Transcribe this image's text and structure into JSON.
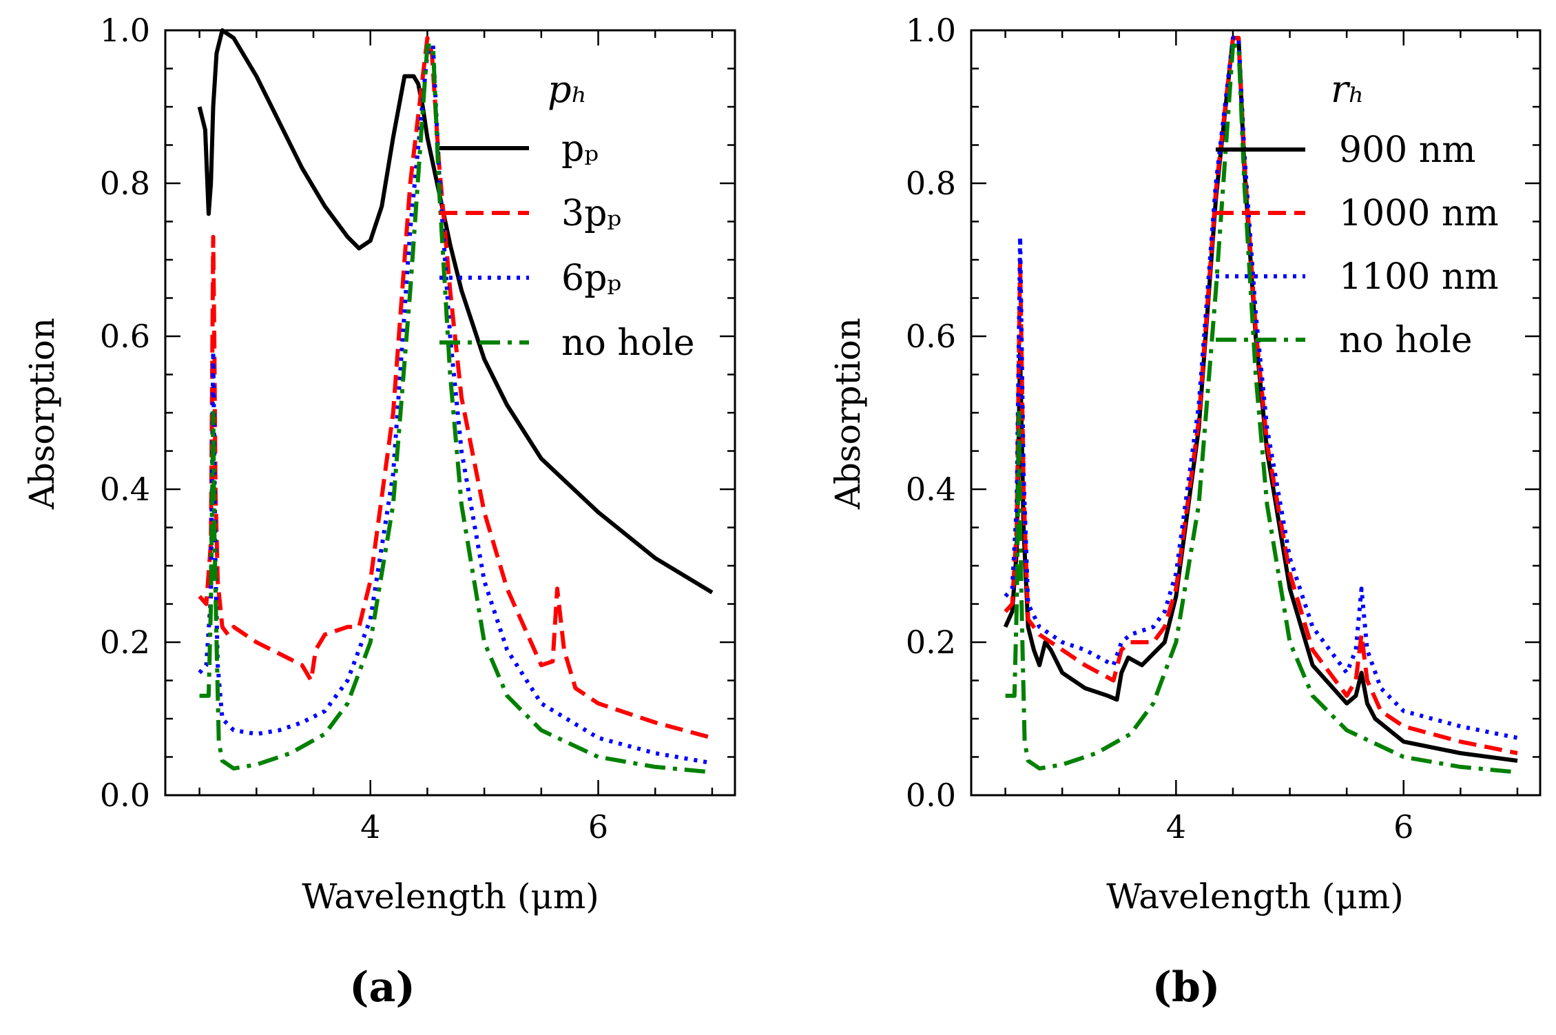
{
  "chart_data": [
    {
      "panel": "a",
      "caption": "(a)",
      "type": "line",
      "xlabel": "Wavelength (μm)",
      "ylabel": "Absorption",
      "xlim": [
        2.2,
        7.2
      ],
      "ylim": [
        0.0,
        1.0
      ],
      "xticks": [
        4,
        6
      ],
      "xtick_labels": [
        "4",
        "6"
      ],
      "yticks": [
        0.0,
        0.2,
        0.4,
        0.6,
        0.8,
        1.0
      ],
      "ytick_labels": [
        "0.0",
        "0.2",
        "0.4",
        "0.6",
        "0.8",
        "1.0"
      ],
      "legend_title": "p_h",
      "legend_title_display": "pₕ",
      "legend_placement": "top-right",
      "series": [
        {
          "name": "p_p",
          "label": "pₚ",
          "color": "#000000",
          "style": "solid",
          "x": [
            2.5,
            2.55,
            2.58,
            2.6,
            2.62,
            2.65,
            2.7,
            2.8,
            3.0,
            3.2,
            3.4,
            3.6,
            3.8,
            3.9,
            4.0,
            4.1,
            4.2,
            4.3,
            4.38,
            4.42,
            4.46,
            4.5,
            4.6,
            4.7,
            4.8,
            5.0,
            5.2,
            5.5,
            6.0,
            6.5,
            7.0
          ],
          "y": [
            0.9,
            0.87,
            0.76,
            0.8,
            0.9,
            0.97,
            1.0,
            0.99,
            0.94,
            0.88,
            0.82,
            0.77,
            0.73,
            0.715,
            0.725,
            0.77,
            0.86,
            0.94,
            0.94,
            0.93,
            0.9,
            0.86,
            0.79,
            0.72,
            0.66,
            0.57,
            0.51,
            0.44,
            0.37,
            0.31,
            0.265
          ]
        },
        {
          "name": "3p_p",
          "label": "3pₚ",
          "color": "#ff0000",
          "style": "dashed",
          "x": [
            2.5,
            2.56,
            2.6,
            2.62,
            2.63,
            2.64,
            2.66,
            2.7,
            2.75,
            2.8,
            3.0,
            3.2,
            3.4,
            3.48,
            3.52,
            3.6,
            3.8,
            3.9,
            4.0,
            4.2,
            4.35,
            4.5,
            4.54,
            4.6,
            4.7,
            4.8,
            5.0,
            5.2,
            5.5,
            5.6,
            5.64,
            5.7,
            5.8,
            6.0,
            6.5,
            7.0
          ],
          "y": [
            0.26,
            0.25,
            0.33,
            0.73,
            0.6,
            0.4,
            0.28,
            0.22,
            0.21,
            0.22,
            0.2,
            0.185,
            0.17,
            0.15,
            0.19,
            0.21,
            0.22,
            0.22,
            0.28,
            0.5,
            0.8,
            0.99,
            0.97,
            0.83,
            0.66,
            0.52,
            0.37,
            0.27,
            0.17,
            0.175,
            0.27,
            0.19,
            0.14,
            0.12,
            0.095,
            0.075
          ]
        },
        {
          "name": "6p_p",
          "label": "6pₚ",
          "color": "#0000ff",
          "style": "dotted",
          "x": [
            2.5,
            2.56,
            2.6,
            2.62,
            2.63,
            2.64,
            2.66,
            2.7,
            2.8,
            3.0,
            3.2,
            3.4,
            3.6,
            3.8,
            4.0,
            4.2,
            4.35,
            4.5,
            4.55,
            4.6,
            4.7,
            4.8,
            5.0,
            5.2,
            5.5,
            6.0,
            6.5,
            7.0
          ],
          "y": [
            0.16,
            0.17,
            0.26,
            0.58,
            0.45,
            0.3,
            0.17,
            0.1,
            0.085,
            0.08,
            0.085,
            0.095,
            0.11,
            0.15,
            0.23,
            0.42,
            0.74,
            0.97,
            0.98,
            0.82,
            0.6,
            0.45,
            0.28,
            0.19,
            0.12,
            0.075,
            0.055,
            0.042
          ]
        },
        {
          "name": "no hole",
          "label": "no hole",
          "color": "#008000",
          "style": "dashdot",
          "x": [
            2.5,
            2.58,
            2.6,
            2.62,
            2.63,
            2.65,
            2.67,
            2.7,
            2.8,
            3.0,
            3.3,
            3.6,
            3.8,
            4.0,
            4.2,
            4.35,
            4.5,
            4.55,
            4.6,
            4.7,
            4.8,
            5.0,
            5.2,
            5.5,
            6.0,
            6.5,
            7.0
          ],
          "y": [
            0.13,
            0.13,
            0.25,
            0.5,
            0.35,
            0.2,
            0.07,
            0.045,
            0.035,
            0.04,
            0.055,
            0.08,
            0.12,
            0.2,
            0.38,
            0.66,
            0.98,
            0.98,
            0.8,
            0.55,
            0.38,
            0.2,
            0.13,
            0.085,
            0.05,
            0.037,
            0.03
          ]
        }
      ]
    },
    {
      "panel": "b",
      "caption": "(b)",
      "type": "line",
      "xlabel": "Wavelength (μm)",
      "ylabel": "Absorption",
      "xlim": [
        2.2,
        7.2
      ],
      "ylim": [
        0.0,
        1.0
      ],
      "xticks": [
        4,
        6
      ],
      "xtick_labels": [
        "4",
        "6"
      ],
      "yticks": [
        0.0,
        0.2,
        0.4,
        0.6,
        0.8,
        1.0
      ],
      "ytick_labels": [
        "0.0",
        "0.2",
        "0.4",
        "0.6",
        "0.8",
        "1.0"
      ],
      "legend_title": "r_h",
      "legend_title_display": "rₕ",
      "legend_placement": "top-right",
      "series": [
        {
          "name": "900 nm",
          "label": "900 nm",
          "color": "#000000",
          "style": "solid",
          "x": [
            2.5,
            2.56,
            2.6,
            2.63,
            2.66,
            2.7,
            2.75,
            2.8,
            2.85,
            2.9,
            3.0,
            3.2,
            3.4,
            3.48,
            3.52,
            3.58,
            3.7,
            3.9,
            4.0,
            4.2,
            4.35,
            4.5,
            4.55,
            4.6,
            4.7,
            4.8,
            5.0,
            5.2,
            5.5,
            5.58,
            5.63,
            5.68,
            5.75,
            6.0,
            6.5,
            7.0
          ],
          "y": [
            0.22,
            0.24,
            0.32,
            0.58,
            0.35,
            0.22,
            0.19,
            0.17,
            0.2,
            0.19,
            0.16,
            0.14,
            0.13,
            0.125,
            0.16,
            0.18,
            0.17,
            0.2,
            0.26,
            0.48,
            0.78,
            0.99,
            0.99,
            0.82,
            0.6,
            0.45,
            0.27,
            0.17,
            0.12,
            0.13,
            0.16,
            0.12,
            0.1,
            0.07,
            0.055,
            0.045
          ]
        },
        {
          "name": "1000 nm",
          "label": "1000 nm",
          "color": "#ff0000",
          "style": "dashed",
          "x": [
            2.5,
            2.56,
            2.6,
            2.63,
            2.66,
            2.7,
            2.8,
            3.0,
            3.2,
            3.45,
            3.52,
            3.6,
            3.8,
            3.9,
            4.0,
            4.2,
            4.35,
            4.5,
            4.55,
            4.6,
            4.7,
            4.8,
            5.0,
            5.2,
            5.5,
            5.58,
            5.63,
            5.68,
            5.8,
            6.0,
            6.5,
            7.0
          ],
          "y": [
            0.24,
            0.25,
            0.35,
            0.7,
            0.4,
            0.23,
            0.21,
            0.19,
            0.17,
            0.15,
            0.19,
            0.2,
            0.2,
            0.22,
            0.27,
            0.49,
            0.79,
            0.99,
            0.99,
            0.83,
            0.61,
            0.46,
            0.29,
            0.19,
            0.13,
            0.15,
            0.21,
            0.15,
            0.11,
            0.09,
            0.07,
            0.055
          ]
        },
        {
          "name": "1100 nm",
          "label": "1100 nm",
          "color": "#0000ff",
          "style": "dotted",
          "x": [
            2.5,
            2.56,
            2.6,
            2.63,
            2.66,
            2.7,
            2.8,
            3.0,
            3.2,
            3.45,
            3.52,
            3.6,
            3.8,
            3.9,
            4.0,
            4.2,
            4.35,
            4.5,
            4.55,
            4.6,
            4.7,
            4.8,
            5.0,
            5.2,
            5.5,
            5.58,
            5.63,
            5.68,
            5.8,
            6.0,
            6.5,
            7.0
          ],
          "y": [
            0.26,
            0.27,
            0.38,
            0.73,
            0.42,
            0.25,
            0.22,
            0.2,
            0.19,
            0.17,
            0.2,
            0.21,
            0.22,
            0.24,
            0.29,
            0.51,
            0.8,
            0.99,
            0.99,
            0.84,
            0.63,
            0.48,
            0.31,
            0.22,
            0.16,
            0.19,
            0.27,
            0.19,
            0.14,
            0.11,
            0.09,
            0.075
          ]
        },
        {
          "name": "no hole",
          "label": "no hole",
          "color": "#008000",
          "style": "dashdot",
          "x": [
            2.5,
            2.58,
            2.6,
            2.62,
            2.63,
            2.65,
            2.67,
            2.7,
            2.8,
            3.0,
            3.3,
            3.6,
            3.8,
            4.0,
            4.2,
            4.35,
            4.5,
            4.55,
            4.6,
            4.7,
            4.8,
            5.0,
            5.2,
            5.5,
            6.0,
            6.5,
            7.0
          ],
          "y": [
            0.13,
            0.13,
            0.25,
            0.5,
            0.35,
            0.2,
            0.07,
            0.045,
            0.035,
            0.04,
            0.055,
            0.08,
            0.12,
            0.2,
            0.38,
            0.66,
            0.98,
            0.98,
            0.8,
            0.55,
            0.38,
            0.2,
            0.13,
            0.085,
            0.05,
            0.037,
            0.03
          ]
        }
      ]
    }
  ]
}
